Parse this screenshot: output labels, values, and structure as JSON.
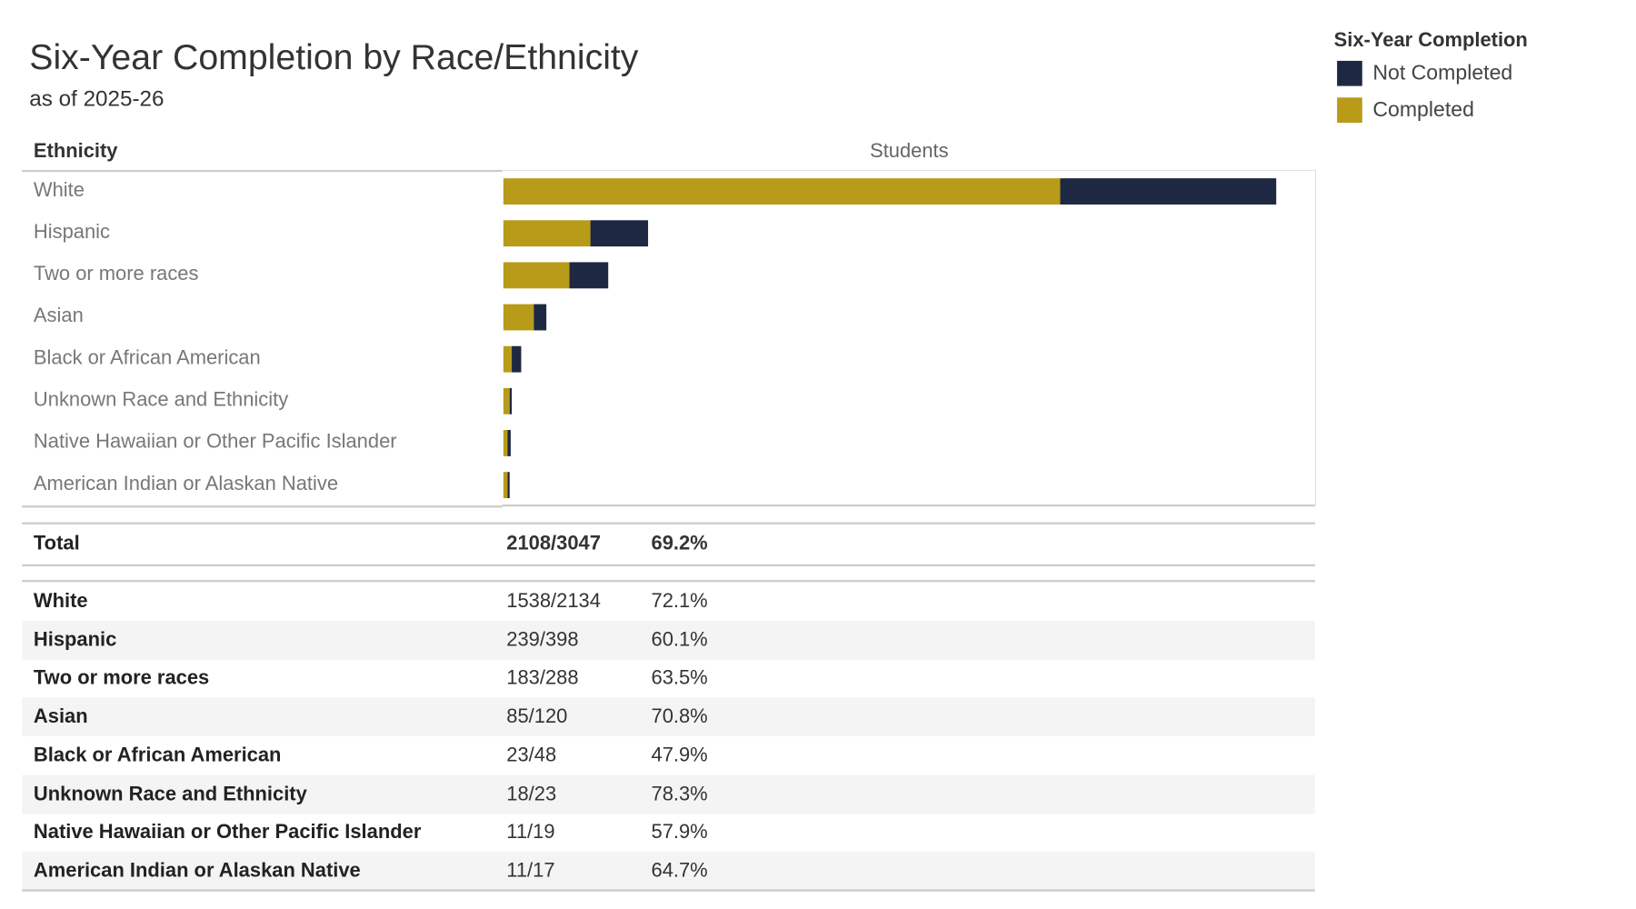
{
  "chart_data": {
    "type": "bar",
    "orientation": "horizontal",
    "stacked": true,
    "title": "Six-Year Completion by Race/Ethnicity",
    "subtitle": "as of 2025-26",
    "row_header": "Ethnicity",
    "xlabel": "Students",
    "xlim": [
      0,
      2240
    ],
    "grid": false,
    "legend": {
      "title": "Six-Year Completion",
      "placement": "top-right",
      "entries": [
        "Not Completed",
        "Completed"
      ]
    },
    "colors": {
      "Completed": "#B89B18",
      "Not Completed": "#1F2842"
    },
    "categories": [
      "White",
      "Hispanic",
      "Two or more races",
      "Asian",
      "Black or African American",
      "Unknown Race and Ethnicity",
      "Native Hawaiian or Other Pacific Islander",
      "American Indian or Alaskan Native"
    ],
    "series": [
      {
        "name": "Completed",
        "values": [
          1538,
          239,
          183,
          85,
          23,
          18,
          11,
          11
        ]
      },
      {
        "name": "Not Completed",
        "values": [
          596,
          159,
          105,
          35,
          25,
          5,
          8,
          6
        ]
      }
    ]
  },
  "table": {
    "total": {
      "label": "Total",
      "fraction": "2108/3047",
      "percent": "69.2%"
    },
    "rows": [
      {
        "label": "White",
        "fraction": "1538/2134",
        "percent": "72.1%"
      },
      {
        "label": "Hispanic",
        "fraction": "239/398",
        "percent": "60.1%"
      },
      {
        "label": "Two or more races",
        "fraction": "183/288",
        "percent": "63.5%"
      },
      {
        "label": "Asian",
        "fraction": "85/120",
        "percent": "70.8%"
      },
      {
        "label": "Black or African American",
        "fraction": "23/48",
        "percent": "47.9%"
      },
      {
        "label": "Unknown Race and Ethnicity",
        "fraction": "18/23",
        "percent": "78.3%"
      },
      {
        "label": "Native Hawaiian or Other Pacific Islander",
        "fraction": "11/19",
        "percent": "57.9%"
      },
      {
        "label": "American Indian or Alaskan Native",
        "fraction": "11/17",
        "percent": "64.7%"
      }
    ]
  }
}
